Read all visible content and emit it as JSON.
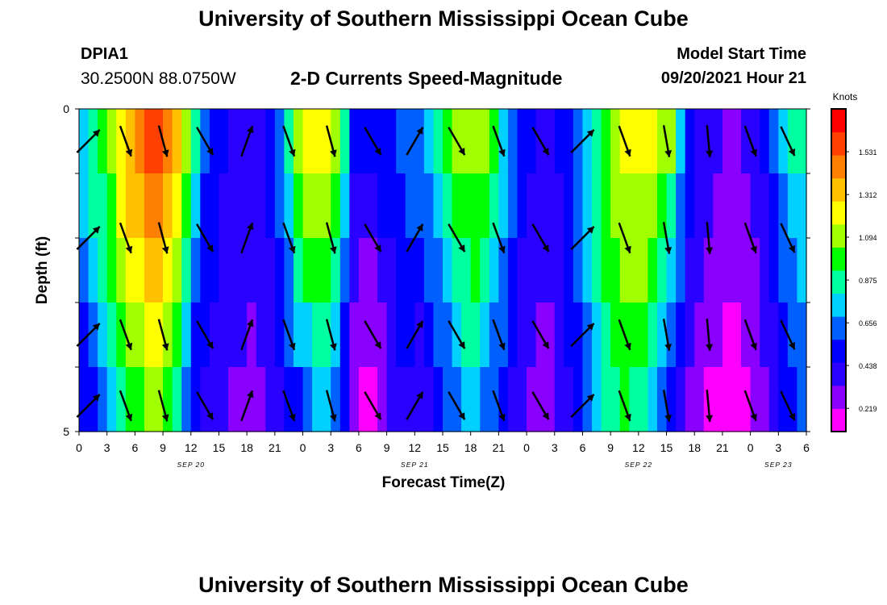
{
  "header": {
    "title": "University of Southern Mississippi Ocean Cube",
    "station": "DPIA1",
    "coords": "30.2500N  88.0750W",
    "subtitle": "2-D Currents Speed-Magnitude",
    "model_label": "Model Start Time",
    "model_time": "09/20/2021 Hour 21"
  },
  "footer": {
    "title": "University of Southern Mississippi Ocean Cube"
  },
  "colors": {
    "arrow": "#000000",
    "grid_edge": "#000000",
    "colorbar_border": "#000000"
  },
  "chart_data": {
    "type": "heatmap",
    "title": "2-D Currents Speed-Magnitude",
    "xlabel": "Forecast Time(Z)",
    "ylabel": "Depth (ft)",
    "x_ticks": [
      "0",
      "3",
      "6",
      "9",
      "12",
      "15",
      "18",
      "21",
      "0",
      "3",
      "6",
      "9",
      "12",
      "15",
      "18",
      "21",
      "0",
      "3",
      "6",
      "9",
      "12",
      "15",
      "18",
      "21",
      "0",
      "3",
      "6"
    ],
    "date_labels": [
      {
        "label": "SEP 20",
        "at_hour": 12
      },
      {
        "label": "SEP 21",
        "at_hour": 36
      },
      {
        "label": "SEP 22",
        "at_hour": 60
      },
      {
        "label": "SEP 23",
        "at_hour": 75
      }
    ],
    "xlim_hours": [
      0,
      78
    ],
    "y_ticks": [
      "0",
      "5"
    ],
    "ylim": [
      0,
      5
    ],
    "depth_levels": 5,
    "colorbar": {
      "unit": "Knots",
      "ticks": [
        "1.531",
        "1.312",
        "1.094",
        "0.875",
        "0.656",
        "0.438",
        "0.219"
      ],
      "tick_values": [
        1.531,
        1.312,
        1.094,
        0.875,
        0.656,
        0.438,
        0.219
      ],
      "range": [
        0.1,
        1.75
      ],
      "colors": [
        "#ff00ff",
        "#8a00ff",
        "#2a00ff",
        "#0000ff",
        "#0060ff",
        "#00d0ff",
        "#00ffa0",
        "#00ff00",
        "#a0ff00",
        "#ffff00",
        "#ffc000",
        "#ff8000",
        "#ff4000",
        "#ff0000"
      ]
    },
    "surface_speed_knots": [
      {
        "hour": 0,
        "value": 0.75
      },
      {
        "hour": 3,
        "value": 1.05
      },
      {
        "hour": 5,
        "value": 1.35
      },
      {
        "hour": 8,
        "value": 1.6
      },
      {
        "hour": 11,
        "value": 1.3
      },
      {
        "hour": 13,
        "value": 0.65
      },
      {
        "hour": 16,
        "value": 0.45
      },
      {
        "hour": 19,
        "value": 0.4
      },
      {
        "hour": 21,
        "value": 0.55
      },
      {
        "hour": 22.5,
        "value": 0.9
      },
      {
        "hour": 24,
        "value": 1.2
      },
      {
        "hour": 26,
        "value": 1.25
      },
      {
        "hour": 28,
        "value": 1.0
      },
      {
        "hour": 29.5,
        "value": 0.5
      },
      {
        "hour": 31,
        "value": 0.45
      },
      {
        "hour": 33,
        "value": 0.55
      },
      {
        "hour": 36,
        "value": 0.65
      },
      {
        "hour": 38,
        "value": 0.8
      },
      {
        "hour": 40,
        "value": 1.05
      },
      {
        "hour": 43,
        "value": 1.15
      },
      {
        "hour": 46,
        "value": 0.7
      },
      {
        "hour": 48,
        "value": 0.5
      },
      {
        "hour": 50,
        "value": 0.4
      },
      {
        "hour": 52,
        "value": 0.5
      },
      {
        "hour": 55,
        "value": 0.85
      },
      {
        "hour": 58,
        "value": 1.2
      },
      {
        "hour": 61,
        "value": 1.25
      },
      {
        "hour": 63.5,
        "value": 1.05
      },
      {
        "hour": 65,
        "value": 0.6
      },
      {
        "hour": 67,
        "value": 0.4
      },
      {
        "hour": 70,
        "value": 0.3
      },
      {
        "hour": 72,
        "value": 0.35
      },
      {
        "hour": 74,
        "value": 0.55
      },
      {
        "hour": 76,
        "value": 0.8
      },
      {
        "hour": 78,
        "value": 0.85
      }
    ],
    "bottom_speed_knots": [
      {
        "hour": 0,
        "value": 0.45
      },
      {
        "hour": 3,
        "value": 0.65
      },
      {
        "hour": 5,
        "value": 0.95
      },
      {
        "hour": 8,
        "value": 1.1
      },
      {
        "hour": 10,
        "value": 0.95
      },
      {
        "hour": 12,
        "value": 0.5
      },
      {
        "hour": 15,
        "value": 0.35
      },
      {
        "hour": 18,
        "value": 0.3
      },
      {
        "hour": 21,
        "value": 0.35
      },
      {
        "hour": 24,
        "value": 0.6
      },
      {
        "hour": 26,
        "value": 0.85
      },
      {
        "hour": 28,
        "value": 0.6
      },
      {
        "hour": 29.5,
        "value": 0.25
      },
      {
        "hour": 31,
        "value": 0.15
      },
      {
        "hour": 33,
        "value": 0.3
      },
      {
        "hour": 35,
        "value": 0.45
      },
      {
        "hour": 37,
        "value": 0.35
      },
      {
        "hour": 39,
        "value": 0.55
      },
      {
        "hour": 42,
        "value": 0.75
      },
      {
        "hour": 45,
        "value": 0.55
      },
      {
        "hour": 48,
        "value": 0.3
      },
      {
        "hour": 51,
        "value": 0.3
      },
      {
        "hour": 54,
        "value": 0.55
      },
      {
        "hour": 56,
        "value": 0.8
      },
      {
        "hour": 58,
        "value": 0.95
      },
      {
        "hour": 60,
        "value": 0.9
      },
      {
        "hour": 62,
        "value": 0.75
      },
      {
        "hour": 64,
        "value": 0.45
      },
      {
        "hour": 66,
        "value": 0.25
      },
      {
        "hour": 70,
        "value": 0.15
      },
      {
        "hour": 73,
        "value": 0.25
      },
      {
        "hour": 76,
        "value": 0.55
      },
      {
        "hour": 78,
        "value": 0.6
      }
    ],
    "arrows": {
      "hours_pos": [
        1,
        5,
        9,
        13.5,
        18,
        22.5,
        27,
        31.5,
        36,
        40.5,
        45,
        49.5,
        54,
        58.5,
        63,
        67.5,
        72,
        76
      ],
      "depth_rows": [
        0.5,
        2.0,
        3.5,
        4.6
      ],
      "angle_deg": [
        45,
        160,
        165,
        150,
        20,
        160,
        165,
        150,
        30,
        150,
        160,
        150,
        45,
        160,
        170,
        175,
        160,
        155
      ]
    }
  }
}
